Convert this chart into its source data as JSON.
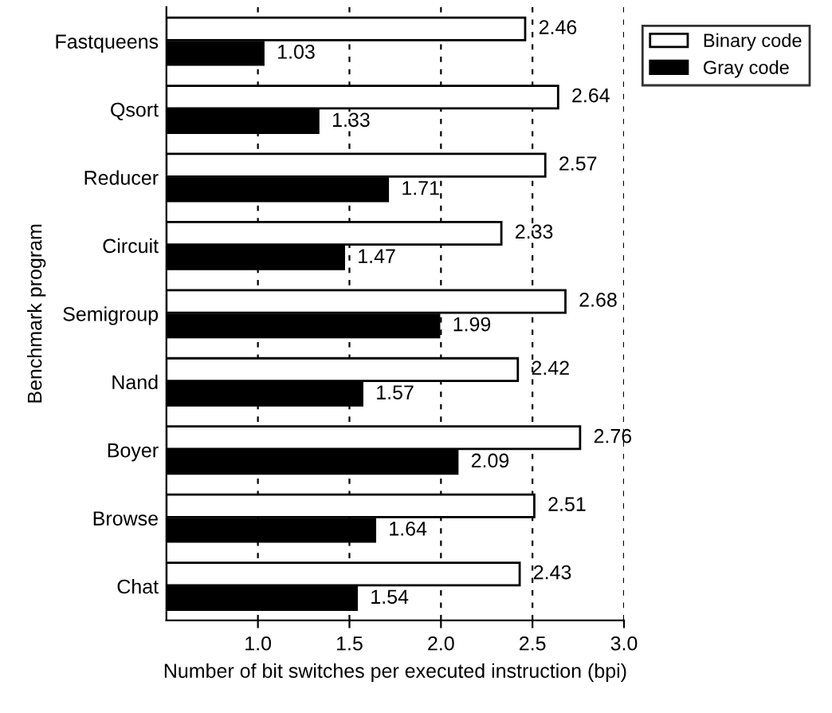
{
  "chart_data": {
    "type": "bar",
    "orientation": "horizontal",
    "xlabel": "Number of bit switches per executed instruction (bpi)",
    "ylabel": "Benchmark program",
    "categories": [
      "Fastqueens",
      "Qsort",
      "Reducer",
      "Circuit",
      "Semigroup",
      "Nand",
      "Boyer",
      "Browse",
      "Chat"
    ],
    "series": [
      {
        "name": "Binary code",
        "color": "#ffffff",
        "values": [
          2.46,
          2.64,
          2.57,
          2.33,
          2.68,
          2.42,
          2.76,
          2.51,
          2.43
        ]
      },
      {
        "name": "Gray code",
        "color": "#000000",
        "values": [
          1.03,
          1.33,
          1.71,
          1.47,
          1.99,
          1.57,
          2.09,
          1.64,
          1.54
        ]
      }
    ],
    "xlim": [
      0.5,
      3.0
    ],
    "xticks": [
      {
        "value": 1.0,
        "label": "1.0"
      },
      {
        "value": 1.5,
        "label": "1.5"
      },
      {
        "value": 2.0,
        "label": "2.0"
      },
      {
        "value": 2.5,
        "label": "2.5"
      },
      {
        "value": 3.0,
        "label": "3.0"
      }
    ],
    "grid": "x",
    "legend": "top right",
    "data_labels": true
  }
}
